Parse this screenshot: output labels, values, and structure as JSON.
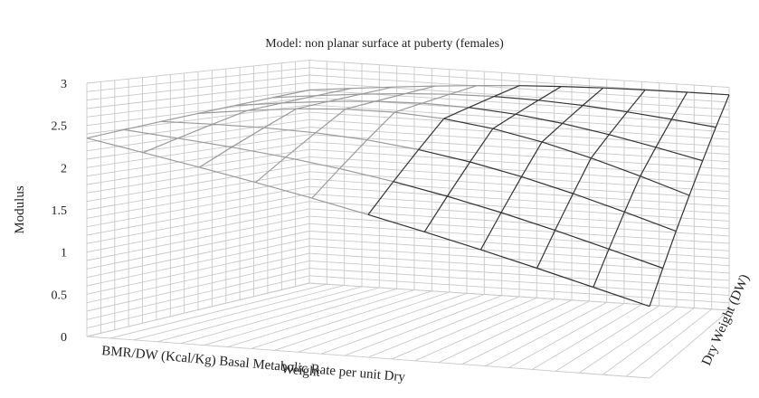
{
  "chart_data": {
    "type": "surface",
    "title": "Model: non planar surface at puberty (females)",
    "zlabel": "Modulus",
    "xlabel_line1": "BMR/DW (Kcal/Kg) Basal Metabolic Rate per unit Dry",
    "xlabel_line2": "Weight",
    "ylabel": "Dry Weight (DW)",
    "zlim": [
      0,
      3
    ],
    "z_ticks": [
      "0",
      "0.5",
      "1",
      "1.5",
      "2",
      "2.5",
      "3"
    ],
    "grid": true,
    "surface": {
      "x_steps": 10,
      "y_steps": 6,
      "z_corner_front_left": 2.35,
      "z_corner_back_left": 2.6,
      "z_corner_front_right": 0.85,
      "z_corner_back_right": 2.9
    },
    "colors": {
      "grid": "#c8c8c8",
      "surface_back": "#9a9a9a",
      "surface_front": "#333333",
      "text": "#222222"
    }
  }
}
